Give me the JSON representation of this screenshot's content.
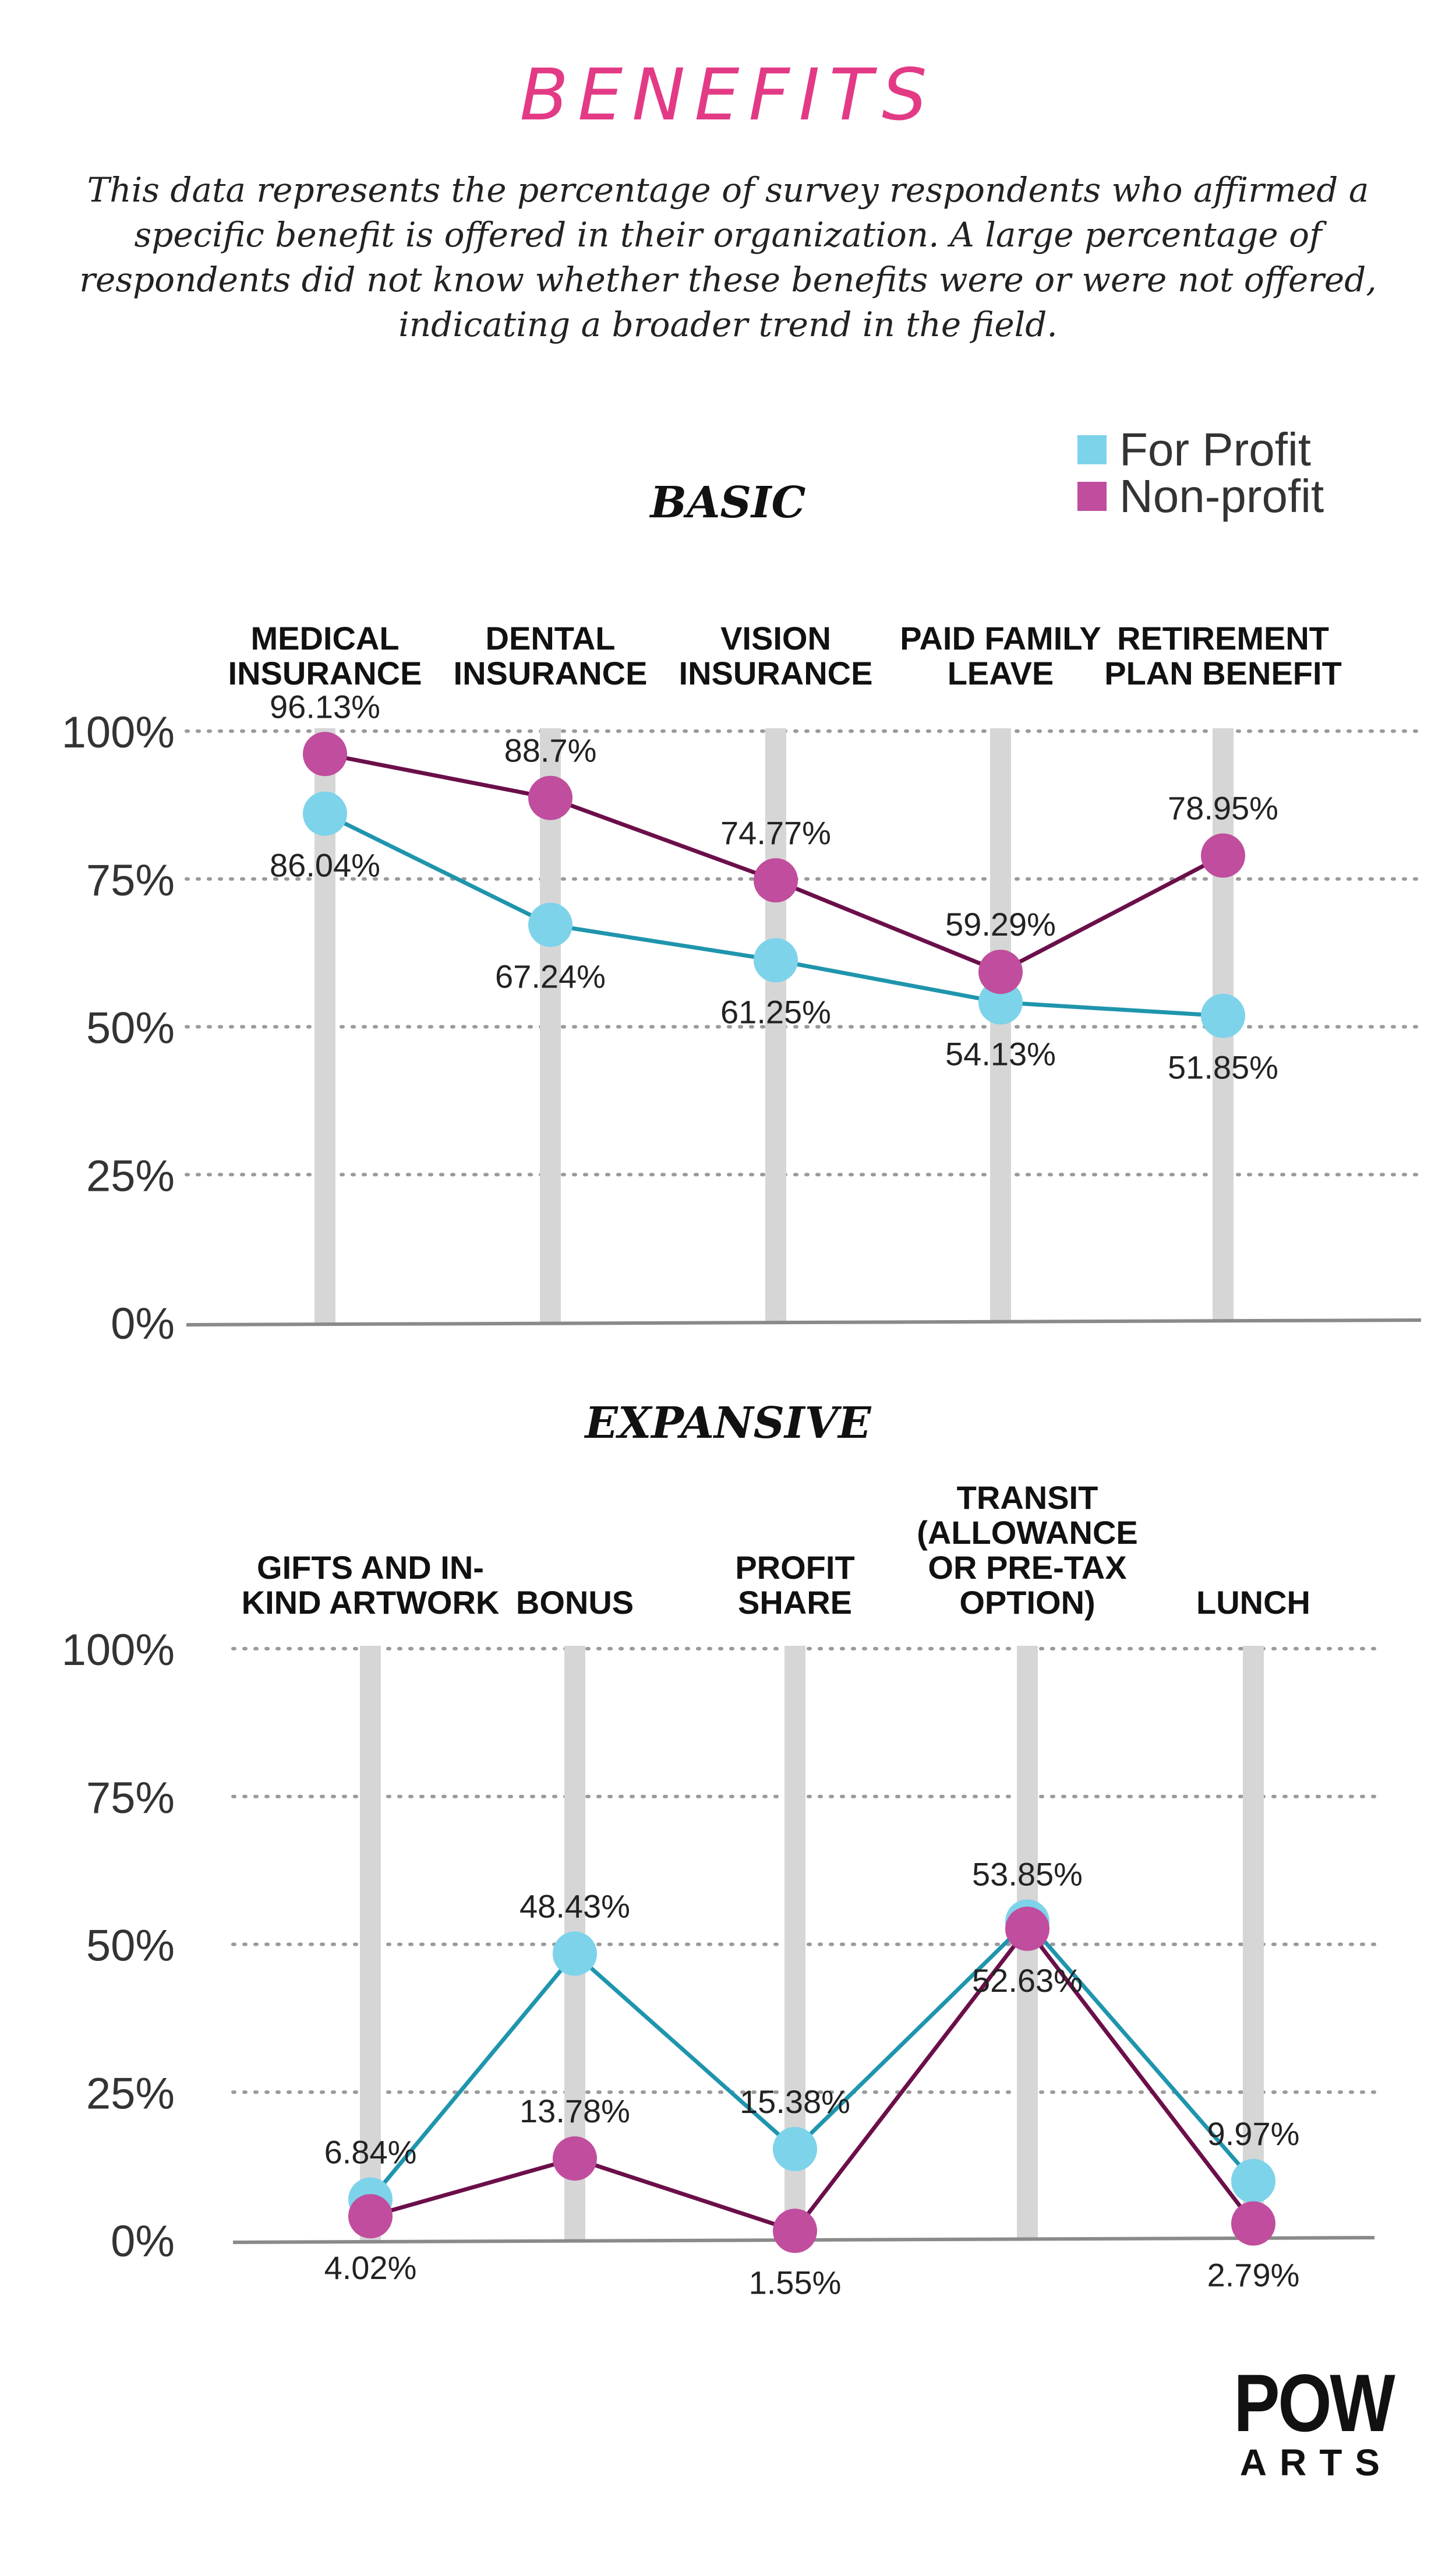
{
  "title": "BENEFITS",
  "intro": "This data represents the percentage of survey respondents who affirmed a specific benefit is offered in their organization. A large percentage of respondents did not know whether these benefits were or were not offered, indicating a broader trend in the field.",
  "legend": {
    "for_profit": "For Profit",
    "non_profit": "Non-profit"
  },
  "colors": {
    "for_profit_marker": "#7dd3ea",
    "for_profit_line": "#1f95ad",
    "non_profit_marker": "#c04d9d",
    "non_profit_line": "#6b0f4a",
    "bar": "#d6d6d6",
    "title": "#e33a86"
  },
  "logo": {
    "main": "POW",
    "sub": "ARTS"
  },
  "chart_data": [
    {
      "type": "line",
      "title": "BASIC",
      "categories": [
        "MEDICAL\nINSURANCE",
        "DENTAL\nINSURANCE",
        "VISION\nINSURANCE",
        "PAID FAMILY\nLEAVE",
        "RETIREMENT\nPLAN BENEFIT"
      ],
      "y_ticks": [
        "100%",
        "75%",
        "50%",
        "25%",
        "0%"
      ],
      "ylim": [
        0,
        100
      ],
      "grid": true,
      "legend_position": "top-right",
      "series": [
        {
          "name": "For Profit",
          "values": [
            86.04,
            67.24,
            61.25,
            54.13,
            51.85
          ],
          "labels": [
            "86.04%",
            "67.24%",
            "61.25%",
            "54.13%",
            "51.85%"
          ]
        },
        {
          "name": "Non-profit",
          "values": [
            96.13,
            88.7,
            74.77,
            59.29,
            78.95
          ],
          "labels": [
            "96.13%",
            "88.7%",
            "74.77%",
            "59.29%",
            "78.95%"
          ]
        }
      ]
    },
    {
      "type": "line",
      "title": "EXPANSIVE",
      "categories": [
        "GIFTS AND IN-\nKIND ARTWORK",
        "BONUS",
        "PROFIT\nSHARE",
        "TRANSIT\n(ALLOWANCE\nOR PRE-TAX\nOPTION)",
        "LUNCH"
      ],
      "y_ticks": [
        "100%",
        "75%",
        "50%",
        "25%",
        "0%"
      ],
      "ylim": [
        0,
        100
      ],
      "grid": true,
      "series": [
        {
          "name": "For Profit",
          "values": [
            6.84,
            48.43,
            15.38,
            53.85,
            9.97
          ],
          "labels": [
            "6.84%",
            "48.43%",
            "15.38%",
            "53.85%",
            "9.97%"
          ]
        },
        {
          "name": "Non-profit",
          "values": [
            4.02,
            13.78,
            1.55,
            52.63,
            2.79
          ],
          "labels": [
            "4.02%",
            "13.78%",
            "1.55%",
            "52.63%",
            "2.79%"
          ]
        }
      ]
    }
  ]
}
